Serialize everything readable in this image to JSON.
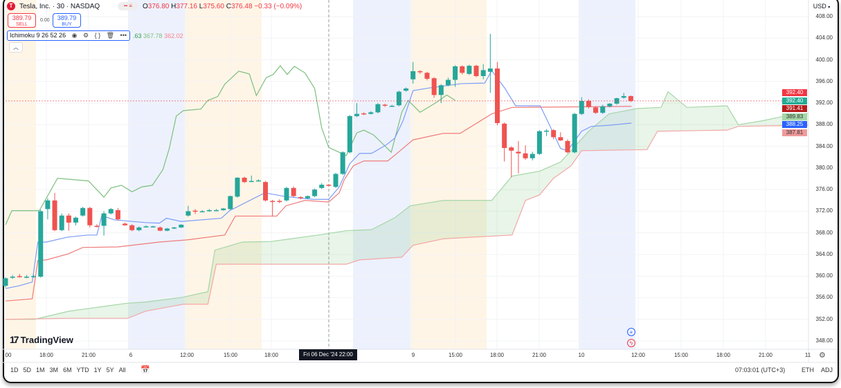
{
  "header": {
    "logo_letter": "T",
    "title": "Tesla, Inc. · 30 · NASDAQ",
    "ohlc": {
      "o_label": "O",
      "o": "376.80",
      "h_label": "H",
      "h": "377.16",
      "l_label": "L",
      "l": "375.60",
      "c_label": "C",
      "c": "376.48",
      "change": "−0.33 (−0.09%)"
    },
    "sell": {
      "price": "389.79",
      "label": "SELL"
    },
    "buy": {
      "price": "389.79",
      "label": "BUY"
    },
    "spread": "0.00",
    "indicator": {
      "name": "Ichimoku",
      "params": "9 26 52 26",
      "values": [
        ".63",
        "367.78",
        "362.02"
      ],
      "value_colors": [
        "#2e9e4a",
        "#4caf50",
        "#f7525f"
      ]
    },
    "collapse_icon": "chevron-up-icon"
  },
  "price_axis": {
    "currency": "USD",
    "ticks": [
      "408.00",
      "404.00",
      "400.00",
      "396.00",
      "392.00",
      "388.00",
      "384.00",
      "380.00",
      "376.00",
      "372.00",
      "368.00",
      "364.00",
      "360.00",
      "356.00",
      "352.00",
      "348.00"
    ],
    "tags": [
      {
        "value": "392.40",
        "color": "#f23645"
      },
      {
        "value": "392.40",
        "color": "#22ab94"
      },
      {
        "value": "391.41",
        "color": "#b71c1c"
      },
      {
        "value": "389.83",
        "color": "#a5d6a7"
      },
      {
        "value": "388.25",
        "color": "#2962ff"
      },
      {
        "value": "387.81",
        "color": "#ef9a9a"
      }
    ]
  },
  "time_axis": {
    "labels": [
      "00",
      "18:00",
      "21:00",
      "6",
      "12:00",
      "15:00",
      "18:00",
      "9",
      "15:00",
      "18:00",
      "21:00",
      "10",
      "12:00",
      "15:00",
      "18:00",
      "21:00",
      "11"
    ],
    "crosshair_label": "Fri 06 Dec '24   22:00"
  },
  "bottom_bar": {
    "ranges": [
      "1D",
      "5D",
      "1M",
      "3M",
      "6M",
      "YTD",
      "1Y",
      "5Y",
      "All"
    ],
    "clock": "07:03:01 (UTC+3)",
    "eth": "ETH",
    "adj": "ADJ"
  },
  "branding": "TradingView",
  "colors": {
    "up": "#26a69a",
    "down": "#ef5350",
    "tenkan": "#7b9cf7",
    "kijun": "#ef7a7a",
    "chikou": "#7cbf7f",
    "cloud": "#4caf50",
    "session_pre": "#fff5e6",
    "session_post": "#edf1fd"
  },
  "chart_data": {
    "type": "candlestick",
    "interval": "30",
    "ylim": [
      348,
      408
    ],
    "candles_ohlc": [
      [
        358.2,
        359.8,
        357.9,
        359.6
      ],
      [
        359.7,
        360.2,
        359.5,
        359.9
      ],
      [
        360.0,
        360.4,
        359.7,
        359.9
      ],
      [
        359.8,
        360.2,
        359.6,
        359.9
      ],
      [
        359.9,
        360.3,
        359.7,
        360.0
      ],
      [
        359.9,
        372.3,
        359.7,
        372.0
      ],
      [
        372.4,
        374.4,
        370.5,
        374.0
      ],
      [
        374.0,
        375.4,
        368.3,
        368.5
      ],
      [
        368.5,
        371.6,
        368.3,
        371.2
      ],
      [
        371.2,
        371.6,
        368.4,
        369.9
      ],
      [
        369.9,
        371.0,
        369.4,
        370.8
      ],
      [
        371.2,
        372.8,
        371.0,
        372.6
      ],
      [
        372.6,
        372.8,
        369.0,
        369.4
      ],
      [
        369.3,
        369.6,
        369.0,
        369.2
      ],
      [
        369.3,
        372.0,
        367.5,
        371.6
      ],
      [
        371.6,
        372.6,
        371.4,
        372.4
      ],
      [
        372.2,
        372.6,
        370.3,
        370.5
      ],
      [
        369.7,
        369.9,
        369.3,
        369.4
      ],
      [
        369.4,
        369.6,
        368.3,
        368.5
      ],
      [
        368.5,
        369.2,
        368.3,
        369.0
      ],
      [
        369.1,
        369.4,
        369.0,
        369.2
      ],
      [
        369.1,
        369.3,
        369.0,
        369.2
      ],
      [
        369.0,
        369.2,
        368.3,
        368.4
      ],
      [
        368.4,
        368.9,
        368.3,
        368.8
      ],
      [
        368.8,
        369.1,
        368.7,
        369.0
      ],
      [
        369.0,
        369.6,
        368.9,
        369.5
      ],
      [
        371.2,
        373.0,
        371.0,
        372.0
      ],
      [
        372.1,
        372.4,
        371.5,
        372.0
      ],
      [
        371.9,
        372.2,
        371.8,
        372.0
      ],
      [
        372.0,
        372.4,
        371.9,
        372.2
      ],
      [
        372.2,
        372.4,
        372.1,
        372.2
      ],
      [
        372.2,
        372.6,
        372.1,
        372.5
      ],
      [
        372.4,
        374.9,
        372.2,
        374.8
      ],
      [
        374.7,
        378.3,
        374.5,
        378.2
      ],
      [
        378.2,
        378.4,
        377.2,
        377.4
      ],
      [
        377.6,
        378.6,
        377.4,
        377.6
      ],
      [
        377.6,
        377.9,
        377.5,
        377.7
      ],
      [
        377.4,
        377.6,
        373.8,
        374.0
      ],
      [
        373.9,
        374.1,
        371.1,
        373.8
      ],
      [
        373.9,
        374.2,
        373.5,
        373.8
      ],
      [
        374.0,
        376.5,
        373.8,
        376.3
      ],
      [
        376.3,
        376.6,
        374.6,
        374.8
      ],
      [
        374.6,
        374.8,
        374.2,
        374.4
      ],
      [
        374.4,
        374.9,
        374.2,
        374.8
      ],
      [
        374.8,
        376.2,
        374.6,
        376.0
      ],
      [
        376.3,
        377.2,
        376.1,
        376.9
      ],
      [
        376.9,
        377.0,
        376.6,
        376.8
      ],
      [
        376.5,
        379.1,
        376.3,
        378.9
      ],
      [
        378.9,
        383.1,
        378.7,
        382.9
      ],
      [
        382.9,
        389.8,
        382.7,
        389.6
      ],
      [
        389.6,
        392.0,
        389.4,
        390.0
      ],
      [
        390.1,
        390.3,
        389.8,
        390.0
      ],
      [
        390.0,
        390.5,
        389.9,
        390.3
      ],
      [
        390.3,
        392.0,
        390.1,
        391.8
      ],
      [
        391.7,
        391.9,
        391.3,
        391.6
      ],
      [
        391.5,
        391.7,
        391.3,
        391.5
      ],
      [
        391.6,
        394.3,
        391.4,
        394.1
      ],
      [
        394.3,
        394.9,
        394.1,
        394.7
      ],
      [
        396.4,
        399.6,
        395.6,
        397.9
      ],
      [
        397.9,
        398.1,
        397.4,
        397.8
      ],
      [
        397.6,
        397.8,
        396.2,
        396.5
      ],
      [
        396.6,
        396.8,
        393.0,
        393.5
      ],
      [
        393.5,
        395.5,
        392.0,
        395.3
      ],
      [
        395.3,
        396.7,
        395.1,
        396.3
      ],
      [
        396.3,
        399.0,
        395.0,
        398.8
      ],
      [
        398.8,
        399.0,
        397.3,
        397.6
      ],
      [
        397.4,
        399.1,
        397.2,
        398.9
      ],
      [
        398.9,
        399.1,
        396.8,
        397.0
      ],
      [
        397.0,
        399.2,
        396.4,
        398.1
      ],
      [
        397.8,
        404.8,
        393.9,
        398.4
      ],
      [
        398.4,
        399.6,
        387.9,
        388.3
      ],
      [
        388.2,
        388.4,
        381.2,
        383.7
      ],
      [
        383.8,
        384.0,
        378.3,
        383.2
      ],
      [
        383.0,
        385.0,
        379.0,
        382.7
      ],
      [
        382.7,
        384.2,
        381.5,
        381.8
      ],
      [
        381.8,
        383.0,
        381.4,
        382.6
      ],
      [
        382.6,
        387.0,
        382.4,
        386.8
      ],
      [
        386.8,
        387.2,
        385.9,
        386.9
      ],
      [
        387.0,
        387.2,
        385.3,
        385.7
      ],
      [
        385.7,
        386.6,
        385.0,
        385.1
      ],
      [
        385.0,
        385.3,
        382.7,
        382.9
      ],
      [
        382.9,
        390.2,
        382.7,
        390.0
      ],
      [
        390.0,
        393.1,
        389.8,
        392.4
      ],
      [
        392.4,
        392.7,
        391.0,
        391.3
      ],
      [
        391.2,
        391.4,
        390.0,
        390.2
      ],
      [
        390.2,
        391.7,
        390.0,
        391.4
      ],
      [
        391.4,
        392.0,
        391.2,
        391.9
      ],
      [
        391.9,
        393.0,
        391.7,
        392.9
      ],
      [
        393.0,
        393.9,
        392.8,
        393.3
      ],
      [
        393.3,
        393.4,
        392.2,
        392.4
      ]
    ],
    "ichimoku_bar_price": {
      "tenkan": [
        [
          0,
          357.7
        ],
        [
          1.9,
          358.2
        ],
        [
          3.8,
          358.9
        ],
        [
          4.6,
          366.3
        ],
        [
          5.8,
          366.3
        ],
        [
          8.8,
          367.2
        ],
        [
          11.7,
          367.6
        ],
        [
          13,
          367.6
        ],
        [
          13.7,
          371.2
        ],
        [
          15.5,
          370.4
        ],
        [
          19.9,
          369.9
        ],
        [
          21.9,
          369.8
        ],
        [
          22.9,
          370.7
        ],
        [
          25,
          370.1
        ],
        [
          30.7,
          370.7
        ],
        [
          31.9,
          372.1
        ],
        [
          36.9,
          375.4
        ],
        [
          39.9,
          374.7
        ],
        [
          43.8,
          374.2
        ],
        [
          46,
          374.2
        ],
        [
          47.5,
          376.5
        ],
        [
          49,
          380.8
        ],
        [
          50.4,
          382.7
        ],
        [
          52.1,
          382.7
        ],
        [
          54.1,
          384.2
        ],
        [
          55.4,
          385.5
        ],
        [
          56.6,
          388.8
        ],
        [
          58,
          394.3
        ],
        [
          60.3,
          394.8
        ],
        [
          64.9,
          395.6
        ],
        [
          68.2,
          395.7
        ],
        [
          69.2,
          398.0
        ],
        [
          71.1,
          394.7
        ],
        [
          72.6,
          391.5
        ],
        [
          76.1,
          391.5
        ],
        [
          77,
          389.1
        ],
        [
          79,
          383.6
        ],
        [
          80,
          383.2
        ],
        [
          82,
          386.8
        ],
        [
          83.4,
          387.7
        ],
        [
          85.9,
          387.9
        ],
        [
          89.1,
          388.3
        ]
      ],
      "kijun": [
        [
          0,
          355.4
        ],
        [
          3.8,
          355.8
        ],
        [
          4.6,
          362.9
        ],
        [
          5.8,
          363.0
        ],
        [
          8.9,
          364.1
        ],
        [
          11,
          365.3
        ],
        [
          16,
          365.4
        ],
        [
          21.9,
          366.3
        ],
        [
          25.8,
          366.7
        ],
        [
          31.2,
          367.6
        ],
        [
          32.7,
          371.1
        ],
        [
          38.6,
          371.1
        ],
        [
          39.9,
          373.0
        ],
        [
          42.6,
          374.0
        ],
        [
          46,
          373.7
        ],
        [
          47.5,
          375.4
        ],
        [
          48.2,
          377.8
        ],
        [
          49.5,
          380.4
        ],
        [
          51,
          381.3
        ],
        [
          54.4,
          381.3
        ],
        [
          55.9,
          382.9
        ],
        [
          58,
          385.2
        ],
        [
          62.3,
          386.4
        ],
        [
          64.7,
          386.4
        ],
        [
          69.2,
          390.0
        ],
        [
          72.1,
          391.2
        ],
        [
          89.1,
          391.4
        ]
      ],
      "chikou": [
        [
          0,
          369.5
        ],
        [
          0.9,
          372.1
        ],
        [
          4.8,
          372.1
        ],
        [
          7.4,
          378.1
        ],
        [
          11.8,
          377.6
        ],
        [
          14,
          374.6
        ],
        [
          15,
          376.3
        ],
        [
          16.5,
          376.8
        ],
        [
          18,
          375.6
        ],
        [
          19.4,
          376.5
        ],
        [
          20.9,
          376.8
        ],
        [
          22.4,
          379.7
        ],
        [
          23.3,
          383.6
        ],
        [
          24.3,
          389.6
        ],
        [
          25.3,
          390.6
        ],
        [
          27.8,
          390.9
        ],
        [
          28.8,
          392.5
        ],
        [
          30.2,
          393.2
        ],
        [
          31.2,
          395.5
        ],
        [
          33.2,
          397.9
        ],
        [
          34.7,
          397.4
        ],
        [
          35.7,
          393.4
        ],
        [
          37.1,
          396.7
        ],
        [
          38.1,
          397.3
        ],
        [
          39.1,
          398.9
        ],
        [
          40.1,
          397.3
        ],
        [
          41.1,
          398.8
        ],
        [
          42.6,
          397.6
        ],
        [
          44,
          394.7
        ],
        [
          45,
          387.4
        ],
        [
          46,
          383.8
        ],
        [
          48.5,
          382.3
        ],
        [
          50,
          386.5
        ],
        [
          51,
          387.0
        ],
        [
          52.4,
          386.1
        ],
        [
          53.9,
          384.2
        ],
        [
          54.9,
          382.9
        ],
        [
          56.4,
          390.3
        ],
        [
          57.3,
          392.5
        ],
        [
          59,
          390.3
        ],
        [
          61.3,
          392.1
        ],
        [
          62.8,
          393.5
        ],
        [
          64,
          392.5
        ]
      ],
      "senkou_a": [
        [
          0,
          352.0
        ],
        [
          4.1,
          352.0
        ],
        [
          9,
          353.5
        ],
        [
          14,
          354.4
        ],
        [
          17.4,
          355.0
        ],
        [
          19.9,
          355.2
        ],
        [
          25.3,
          356.1
        ],
        [
          27.3,
          356.7
        ],
        [
          28.8,
          357.1
        ],
        [
          29.8,
          364.8
        ],
        [
          33.7,
          366.3
        ],
        [
          37.8,
          366.4
        ],
        [
          40.6,
          366.9
        ],
        [
          44.5,
          367.6
        ],
        [
          48.5,
          368.4
        ],
        [
          52.1,
          368.6
        ],
        [
          55.4,
          370.8
        ],
        [
          57.6,
          373.0
        ],
        [
          62.3,
          374.0
        ],
        [
          69.2,
          374.0
        ],
        [
          72.1,
          378.5
        ],
        [
          76,
          379.4
        ],
        [
          79,
          381.1
        ],
        [
          80.5,
          383.2
        ],
        [
          83,
          386.8
        ],
        [
          85.9,
          390.0
        ],
        [
          89.9,
          391.0
        ],
        [
          93.3,
          391.2
        ],
        [
          94.3,
          394.1
        ],
        [
          97,
          391.2
        ],
        [
          102.7,
          391.5
        ],
        [
          104.3,
          388.0
        ],
        [
          107.6,
          388.7
        ],
        [
          111.3,
          389.7
        ],
        [
          114.3,
          390.1
        ]
      ],
      "senkou_b": [
        [
          0,
          352.0
        ],
        [
          9,
          352.2
        ],
        [
          17.4,
          352.2
        ],
        [
          19.9,
          353.5
        ],
        [
          25.3,
          354.8
        ],
        [
          28.8,
          354.8
        ],
        [
          30,
          362.2
        ],
        [
          48.5,
          362.2
        ],
        [
          50.4,
          363.0
        ],
        [
          56.4,
          363.5
        ],
        [
          58,
          365.7
        ],
        [
          62.3,
          366.9
        ],
        [
          72.1,
          367.6
        ],
        [
          74,
          374.0
        ],
        [
          76,
          375.0
        ],
        [
          78,
          378.1
        ],
        [
          80.5,
          380.4
        ],
        [
          82,
          383.2
        ],
        [
          91.3,
          383.4
        ],
        [
          92.8,
          386.8
        ],
        [
          102.7,
          387.0
        ],
        [
          104.3,
          387.7
        ],
        [
          114.3,
          387.9
        ]
      ]
    },
    "last_price_line": 392.4,
    "grid": true
  }
}
